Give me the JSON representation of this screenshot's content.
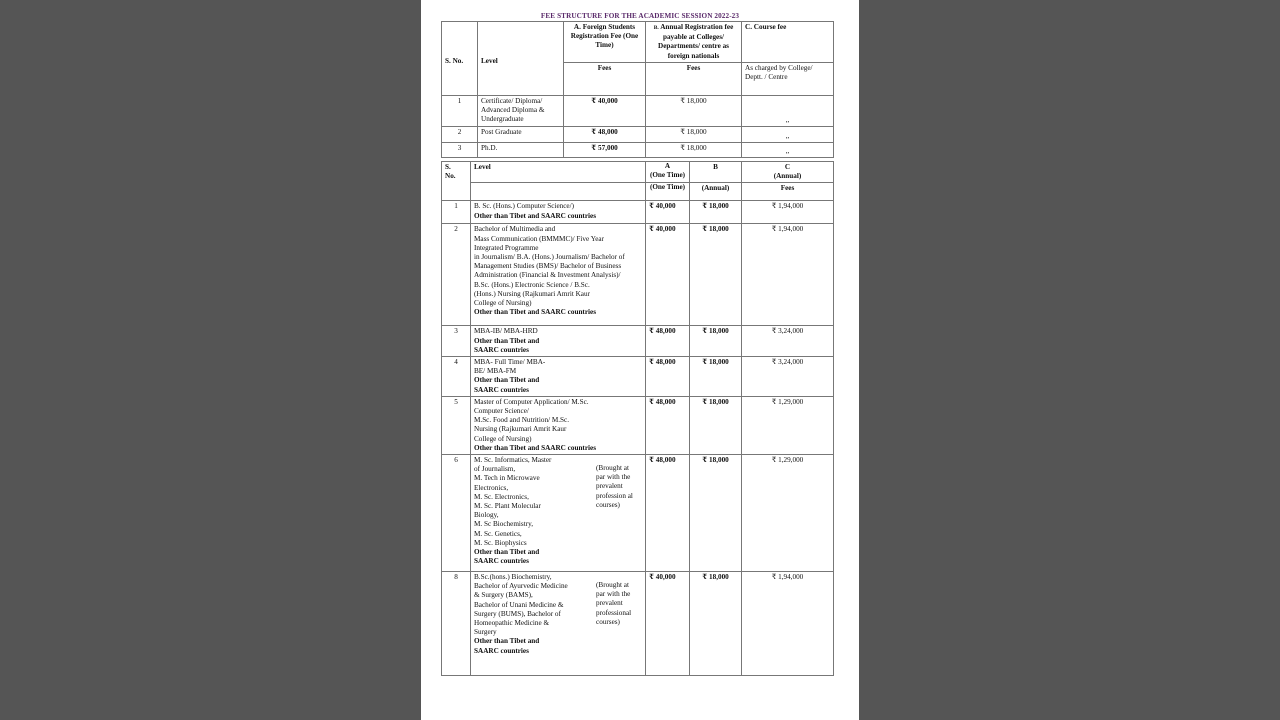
{
  "title": "FEE STRUCTURE FOR THE ACADEMIC SESSION 2022-23",
  "colors": {
    "title": "#5a2a6a",
    "background_dim": "#555555",
    "page": "#ffffff"
  },
  "table1": {
    "headers": {
      "sno": "S. No.",
      "level": "Level",
      "a": "A. Foreign Students Registration Fee (One Time)",
      "b_prefix": "B.",
      "b": "Annual Registration fee payable at Colleges/ Departments/ centre as foreign nationals",
      "c": "C. Course fee",
      "a_sub": "Fees",
      "b_sub": "Fees",
      "c_sub": "As charged by College/ Deptt. / Centre"
    },
    "rows": [
      {
        "sno": "1",
        "level": "Certificate/ Diploma/\nAdvanced Diploma &\nUndergraduate",
        "a": "₹ 40,000",
        "b": "₹ 18,000",
        "c": ",,"
      },
      {
        "sno": "2",
        "level": "Post Graduate",
        "a": "₹ 48,000",
        "b": "₹ 18,000",
        "c": ",,"
      },
      {
        "sno": "3",
        "level": "Ph.D.",
        "a": "₹ 57,000",
        "b": "₹ 18,000",
        "c": ",,"
      }
    ]
  },
  "table2": {
    "headers": {
      "sno": "S.\nNo.",
      "level": "Level",
      "a": "A\n(One Time)",
      "b": "B",
      "c": "C\n(Annual)",
      "a_sub": "(One Time)",
      "b_sub": "(Annual)",
      "c_sub": "Fees"
    },
    "rows": [
      {
        "sno": "1",
        "level": "B. Sc. (Hons.) Computer Science/)",
        "bold": "Other than Tibet and SAARC countries",
        "note": "",
        "a": "₹ 40,000",
        "b": "₹ 18,000",
        "c": "₹ 1,94,000"
      },
      {
        "sno": "2",
        "level": "Bachelor of Multimedia and\nMass Communication (BMMMC)/ Five Year\nIntegrated Programme\nin Journalism/ B.A. (Hons.) Journalism/ Bachelor of\nManagement Studies (BMS)/ Bachelor of Business\nAdministration (Financial & Investment Analysis)/\nB.Sc. (Hons.) Electronic Science / B.Sc.\n(Hons.) Nursing (Rajkumari Amrit Kaur\nCollege of Nursing)",
        "bold": "Other than Tibet and SAARC countries",
        "note": "",
        "a": "₹ 40,000",
        "b": "₹ 18,000",
        "c": "₹ 1,94,000"
      },
      {
        "sno": "3",
        "level": "MBA-IB/ MBA-HRD",
        "bold": "Other than Tibet and\nSAARC countries",
        "note": "",
        "a": "₹ 48,000",
        "b": "₹ 18,000",
        "c": "₹ 3,24,000"
      },
      {
        "sno": "4",
        "level": "MBA- Full Time/ MBA-\nBE/  MBA-FM",
        "bold": "Other than Tibet and\nSAARC countries",
        "note": "",
        "a": "₹ 48,000",
        "b": "₹ 18,000",
        "c": "₹ 3,24,000"
      },
      {
        "sno": "5",
        "level": "Master of Computer Application/ M.Sc.\nComputer Science/\nM.Sc. Food and Nutrition/ M.Sc.\nNursing (Rajkumari Amrit Kaur\nCollege of Nursing)",
        "bold": "Other than Tibet and SAARC countries",
        "note": "",
        "a": "₹ 48,000",
        "b": "₹ 18,000",
        "c": "₹ 1,29,000"
      },
      {
        "sno": "6",
        "level": "M. Sc. Informatics, Master\nof Journalism,\nM. Tech in Microwave\nElectronics,\nM. Sc. Electronics,\nM. Sc. Plant Molecular\nBiology,\nM. Sc Biochemistry,\nM. Sc. Genetics,\nM. Sc. Biophysics",
        "bold": "Other than Tibet and\nSAARC countries",
        "note": "(Brought at\npar with the\nprevalent\nprofession al\ncourses)",
        "a": "₹ 48,000",
        "b": "₹ 18,000",
        "c": "₹ 1,29,000"
      },
      {
        "sno": "8",
        "level": "B.Sc.(hons.) Biochemistry,\nBachelor of Ayurvedic Medicine\n& Surgery (BAMS),\nBachelor of Unani Medicine &\nSurgery (BUMS), Bachelor of\nHomeopathic Medicine &\nSurgery",
        "bold": "Other than Tibet and\nSAARC countries",
        "note": "(Brought at\npar with the\nprevalent\nprofessional\ncourses)",
        "a": "₹ 40,000",
        "b": "₹ 18,000",
        "c": "₹ 1,94,000"
      }
    ]
  }
}
